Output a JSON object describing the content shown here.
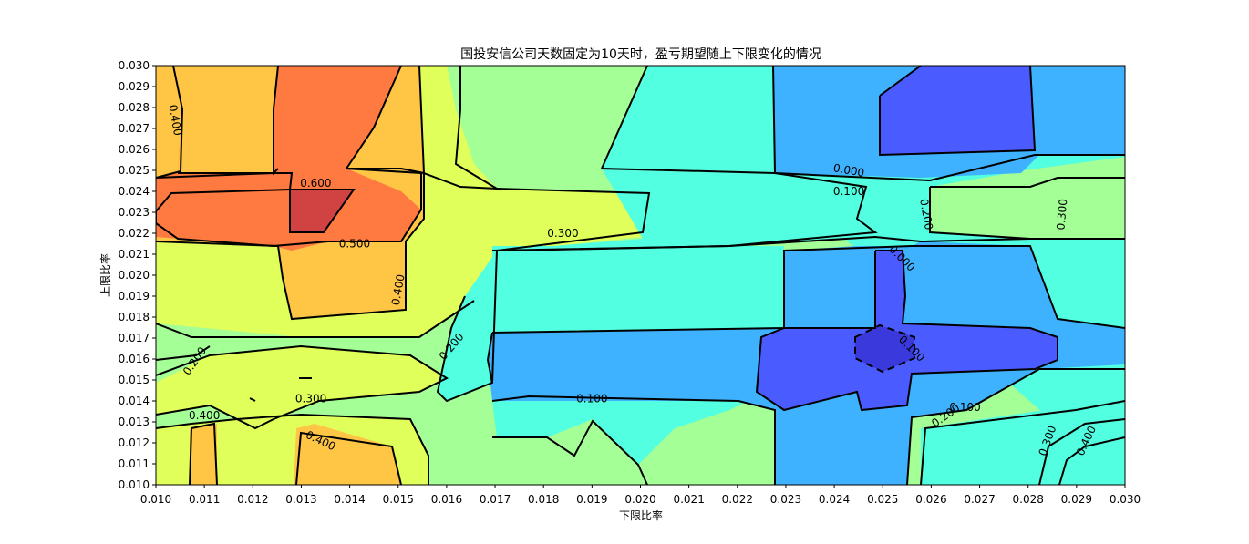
{
  "chart_data": {
    "type": "contour",
    "title": "国投安信公司天数固定为10天时，盈亏期望随上下限变化的情况",
    "xlabel": "下限比率",
    "ylabel": "上限比率",
    "xlim": [
      0.01,
      0.03
    ],
    "ylim": [
      0.01,
      0.03
    ],
    "x": [
      0.01,
      0.011,
      0.012,
      0.013,
      0.014,
      0.015,
      0.016,
      0.017,
      0.018,
      0.019,
      0.02,
      0.021,
      0.022,
      0.023,
      0.024,
      0.025,
      0.026,
      0.027,
      0.028,
      0.029,
      0.03
    ],
    "y": [
      0.01,
      0.011,
      0.012,
      0.013,
      0.014,
      0.015,
      0.016,
      0.017,
      0.018,
      0.019,
      0.02,
      0.021,
      0.022,
      0.023,
      0.024,
      0.025,
      0.026,
      0.027,
      0.028,
      0.029,
      0.03
    ],
    "x_tick_labels": [
      "0.010",
      "0.011",
      "0.012",
      "0.013",
      "0.014",
      "0.015",
      "0.016",
      "0.017",
      "0.018",
      "0.019",
      "0.020",
      "0.021",
      "0.022",
      "0.023",
      "0.024",
      "0.025",
      "0.026",
      "0.027",
      "0.028",
      "0.029",
      "0.030"
    ],
    "y_tick_labels": [
      "0.010",
      "0.011",
      "0.012",
      "0.013",
      "0.014",
      "0.015",
      "0.016",
      "0.017",
      "0.018",
      "0.019",
      "0.020",
      "0.021",
      "0.022",
      "0.023",
      "0.024",
      "0.025",
      "0.026",
      "0.027",
      "0.028",
      "0.029",
      "0.030"
    ],
    "levels": [
      -0.1,
      0.0,
      0.1,
      0.2,
      0.3,
      0.4,
      0.5,
      0.6
    ],
    "colormap": [
      "#3a3adc",
      "#4a5cff",
      "#3fb2ff",
      "#52ffe0",
      "#a3ff96",
      "#e0ff5a",
      "#ffc545",
      "#ff7a40",
      "#d14343"
    ],
    "contour_labels": [
      {
        "text": "0.400",
        "x": 0.0104,
        "y": 0.0274,
        "rotation": 80
      },
      {
        "text": "0.600",
        "x": 0.0133,
        "y": 0.0244,
        "rotation": 0
      },
      {
        "text": "0.500",
        "x": 0.0141,
        "y": 0.0215,
        "rotation": 0
      },
      {
        "text": "0.400",
        "x": 0.015,
        "y": 0.0193,
        "rotation": -80
      },
      {
        "text": "0.300",
        "x": 0.0184,
        "y": 0.022,
        "rotation": 0
      },
      {
        "text": "0.000",
        "x": 0.0243,
        "y": 0.025,
        "rotation": 10
      },
      {
        "text": "0.100",
        "x": 0.0243,
        "y": 0.024,
        "rotation": 0
      },
      {
        "text": "0.200",
        "x": 0.0259,
        "y": 0.0229,
        "rotation": 80
      },
      {
        "text": "0.300",
        "x": 0.0287,
        "y": 0.0229,
        "rotation": -85
      },
      {
        "text": "0.000",
        "x": 0.0254,
        "y": 0.0208,
        "rotation": 45
      },
      {
        "text": "0.100",
        "x": 0.0256,
        "y": 0.0165,
        "rotation": 45
      },
      {
        "text": "0.200",
        "x": 0.0108,
        "y": 0.0159,
        "rotation": -55
      },
      {
        "text": "0.200",
        "x": 0.0161,
        "y": 0.0166,
        "rotation": -50
      },
      {
        "text": "0.300",
        "x": 0.0132,
        "y": 0.0141,
        "rotation": 0
      },
      {
        "text": "0.100",
        "x": 0.019,
        "y": 0.0141,
        "rotation": 0
      },
      {
        "text": "0.100",
        "x": 0.0267,
        "y": 0.0137,
        "rotation": 0
      },
      {
        "text": "0.400",
        "x": 0.011,
        "y": 0.0133,
        "rotation": 0
      },
      {
        "text": "0.200",
        "x": 0.0263,
        "y": 0.0133,
        "rotation": -35
      },
      {
        "text": "0.400",
        "x": 0.0134,
        "y": 0.0121,
        "rotation": 25
      },
      {
        "text": "0.300",
        "x": 0.0284,
        "y": 0.0121,
        "rotation": -70
      },
      {
        "text": "0.400",
        "x": 0.0292,
        "y": 0.0121,
        "rotation": -65
      }
    ]
  }
}
